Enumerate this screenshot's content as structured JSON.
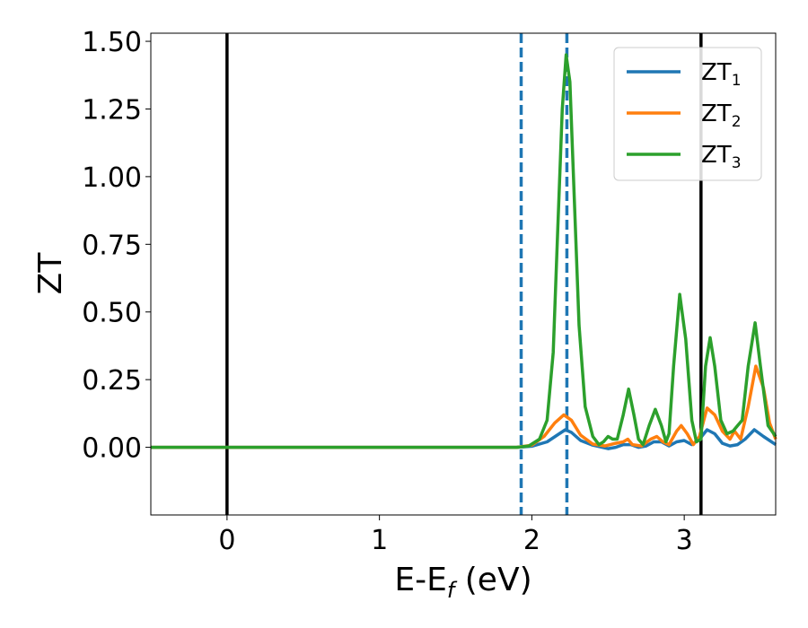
{
  "chart_data": {
    "type": "line",
    "xlabel_main": "E-E",
    "xlabel_sub": "f",
    "xlabel_unit": " (eV)",
    "ylabel": "ZT",
    "xlim": [
      -0.5,
      3.6
    ],
    "ylim": [
      -0.25,
      1.53
    ],
    "x_ticks": [
      0,
      1,
      2,
      3
    ],
    "y_ticks": [
      0.0,
      0.25,
      0.5,
      0.75,
      1.0,
      1.25,
      1.5
    ],
    "y_tick_labels": [
      "0.00",
      "0.25",
      "0.50",
      "0.75",
      "1.00",
      "1.25",
      "1.50"
    ],
    "legend_position": "top-right",
    "vlines": [
      {
        "x": 0.0,
        "style": "solid",
        "color": "#000000"
      },
      {
        "x": 3.11,
        "style": "solid",
        "color": "#000000"
      },
      {
        "x": 1.93,
        "style": "dashed",
        "color": "#1f77b4"
      },
      {
        "x": 2.23,
        "style": "dashed",
        "color": "#1f77b4"
      }
    ],
    "series": [
      {
        "name": "ZT",
        "name_sub": "1",
        "color": "#1f77b4",
        "points": [
          [
            -0.5,
            0
          ],
          [
            1.9,
            0
          ],
          [
            2.0,
            0.004
          ],
          [
            2.1,
            0.02
          ],
          [
            2.18,
            0.05
          ],
          [
            2.22,
            0.065
          ],
          [
            2.26,
            0.055
          ],
          [
            2.32,
            0.025
          ],
          [
            2.4,
            0.008
          ],
          [
            2.5,
            -0.005
          ],
          [
            2.55,
            0.0
          ],
          [
            2.6,
            0.01
          ],
          [
            2.65,
            0.01
          ],
          [
            2.7,
            0.0
          ],
          [
            2.75,
            0.005
          ],
          [
            2.8,
            0.02
          ],
          [
            2.85,
            0.02
          ],
          [
            2.9,
            0.005
          ],
          [
            2.95,
            0.02
          ],
          [
            3.0,
            0.025
          ],
          [
            3.05,
            0.01
          ],
          [
            3.1,
            0.03
          ],
          [
            3.15,
            0.065
          ],
          [
            3.2,
            0.05
          ],
          [
            3.25,
            0.015
          ],
          [
            3.3,
            0.005
          ],
          [
            3.35,
            0.01
          ],
          [
            3.4,
            0.03
          ],
          [
            3.46,
            0.065
          ],
          [
            3.52,
            0.04
          ],
          [
            3.6,
            0.01
          ]
        ]
      },
      {
        "name": "ZT",
        "name_sub": "2",
        "color": "#ff7f0e",
        "points": [
          [
            -0.5,
            0
          ],
          [
            1.9,
            0
          ],
          [
            2.0,
            0.008
          ],
          [
            2.08,
            0.04
          ],
          [
            2.15,
            0.09
          ],
          [
            2.21,
            0.12
          ],
          [
            2.26,
            0.1
          ],
          [
            2.32,
            0.045
          ],
          [
            2.4,
            0.012
          ],
          [
            2.48,
            0.005
          ],
          [
            2.55,
            0.015
          ],
          [
            2.6,
            0.02
          ],
          [
            2.63,
            0.03
          ],
          [
            2.66,
            0.01
          ],
          [
            2.72,
            0.005
          ],
          [
            2.78,
            0.03
          ],
          [
            2.82,
            0.04
          ],
          [
            2.86,
            0.02
          ],
          [
            2.9,
            0.01
          ],
          [
            2.95,
            0.06
          ],
          [
            2.98,
            0.08
          ],
          [
            3.02,
            0.05
          ],
          [
            3.06,
            0.01
          ],
          [
            3.1,
            0.04
          ],
          [
            3.15,
            0.145
          ],
          [
            3.2,
            0.12
          ],
          [
            3.25,
            0.06
          ],
          [
            3.3,
            0.03
          ],
          [
            3.33,
            0.06
          ],
          [
            3.37,
            0.03
          ],
          [
            3.42,
            0.15
          ],
          [
            3.47,
            0.3
          ],
          [
            3.52,
            0.22
          ],
          [
            3.56,
            0.09
          ],
          [
            3.6,
            0.03
          ]
        ]
      },
      {
        "name": "ZT",
        "name_sub": "3",
        "color": "#2ca02c",
        "points": [
          [
            -0.5,
            0
          ],
          [
            1.9,
            0
          ],
          [
            1.98,
            0.005
          ],
          [
            2.05,
            0.03
          ],
          [
            2.1,
            0.1
          ],
          [
            2.14,
            0.35
          ],
          [
            2.17,
            0.8
          ],
          [
            2.2,
            1.25
          ],
          [
            2.225,
            1.45
          ],
          [
            2.25,
            1.35
          ],
          [
            2.28,
            0.9
          ],
          [
            2.31,
            0.45
          ],
          [
            2.35,
            0.15
          ],
          [
            2.4,
            0.04
          ],
          [
            2.44,
            0.01
          ],
          [
            2.47,
            0.02
          ],
          [
            2.5,
            0.04
          ],
          [
            2.53,
            0.03
          ],
          [
            2.56,
            0.03
          ],
          [
            2.6,
            0.12
          ],
          [
            2.635,
            0.215
          ],
          [
            2.67,
            0.12
          ],
          [
            2.7,
            0.03
          ],
          [
            2.73,
            0.01
          ],
          [
            2.77,
            0.08
          ],
          [
            2.81,
            0.14
          ],
          [
            2.85,
            0.08
          ],
          [
            2.88,
            0.02
          ],
          [
            2.9,
            0.05
          ],
          [
            2.93,
            0.3
          ],
          [
            2.97,
            0.565
          ],
          [
            3.01,
            0.4
          ],
          [
            3.05,
            0.1
          ],
          [
            3.08,
            0.02
          ],
          [
            3.11,
            0.03
          ],
          [
            3.14,
            0.3
          ],
          [
            3.17,
            0.405
          ],
          [
            3.2,
            0.3
          ],
          [
            3.24,
            0.1
          ],
          [
            3.28,
            0.05
          ],
          [
            3.32,
            0.06
          ],
          [
            3.35,
            0.08
          ],
          [
            3.38,
            0.1
          ],
          [
            3.42,
            0.3
          ],
          [
            3.465,
            0.46
          ],
          [
            3.5,
            0.3
          ],
          [
            3.55,
            0.08
          ],
          [
            3.6,
            0.04
          ]
        ]
      }
    ]
  }
}
